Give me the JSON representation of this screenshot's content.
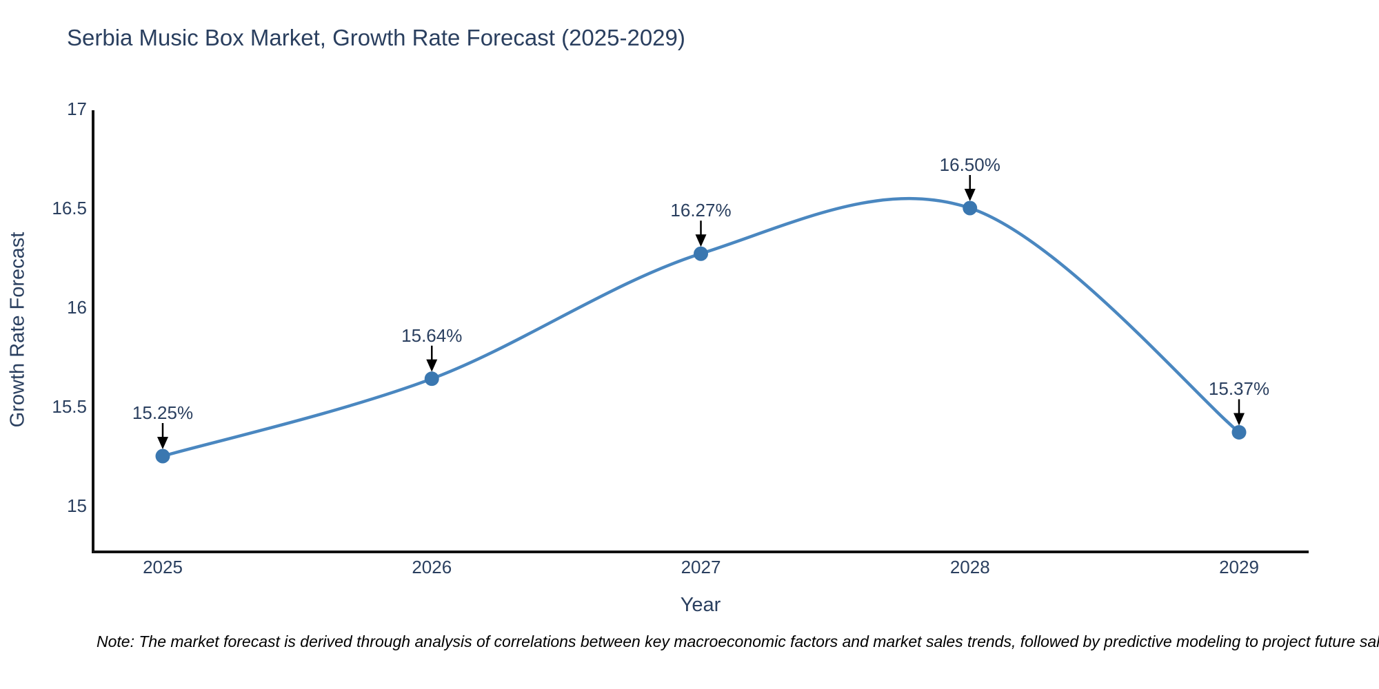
{
  "chart_data": {
    "type": "line",
    "line_shape": "spline",
    "title": "Serbia Music Box Market, Growth Rate Forecast (2025-2029)",
    "xlabel": "Year",
    "ylabel": "Growth Rate Forecast",
    "x": [
      2025,
      2026,
      2027,
      2028,
      2029
    ],
    "series": [
      {
        "name": "Growth Rate Forecast",
        "values": [
          15.25,
          15.64,
          16.27,
          16.5,
          15.37
        ]
      }
    ],
    "point_labels": [
      "15.25%",
      "15.64%",
      "16.27%",
      "16.50%",
      "15.37%"
    ],
    "xticks": [
      "2025",
      "2026",
      "2027",
      "2028",
      "2029"
    ],
    "yticks": [
      15,
      15.5,
      16,
      16.5,
      17
    ],
    "ylim": [
      14.77,
      17
    ],
    "xlim": [
      2024.74,
      2029.26
    ],
    "grid": false,
    "legend": "none",
    "annotations": "each data point labeled with percentage and black down-arrow",
    "colors": {
      "line": "#4a87c0",
      "marker": "#3a77b0",
      "text": "#2a3f5f",
      "axis": "#111111",
      "arrow": "#000000"
    }
  },
  "note": "Note: The market forecast is derived through analysis of correlations between key macroeconomic factors and market sales trends, followed by predictive modeling to project future sales trends."
}
